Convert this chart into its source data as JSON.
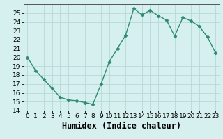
{
  "xlabel": "Humidex (Indice chaleur)",
  "x": [
    0,
    1,
    2,
    3,
    4,
    5,
    6,
    7,
    8,
    9,
    10,
    11,
    12,
    13,
    14,
    15,
    16,
    17,
    18,
    19,
    20,
    21,
    22,
    23
  ],
  "y": [
    20,
    18.5,
    17.5,
    16.5,
    15.5,
    15.2,
    15.1,
    14.9,
    14.7,
    17.0,
    19.5,
    21.0,
    22.5,
    25.5,
    24.8,
    25.3,
    24.7,
    24.2,
    22.4,
    24.5,
    24.1,
    23.5,
    22.3,
    20.5
  ],
  "line_color": "#2e8b6e",
  "marker": "D",
  "marker_size": 2.5,
  "bg_color": "#d6f0f0",
  "grid_color": "#b8d8d8",
  "ylim": [
    14,
    26
  ],
  "xlim": [
    -0.5,
    23.5
  ],
  "yticks": [
    14,
    15,
    16,
    17,
    18,
    19,
    20,
    21,
    22,
    23,
    24,
    25
  ],
  "xticks": [
    0,
    1,
    2,
    3,
    4,
    5,
    6,
    7,
    8,
    9,
    10,
    11,
    12,
    13,
    14,
    15,
    16,
    17,
    18,
    19,
    20,
    21,
    22,
    23
  ],
  "tick_fontsize": 6.5,
  "xlabel_fontsize": 8.5,
  "line_width": 1.0
}
